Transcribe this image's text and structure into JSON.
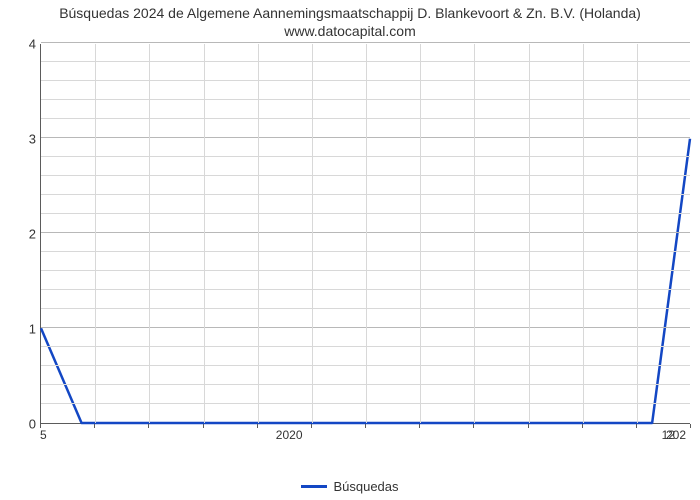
{
  "chart": {
    "type": "line",
    "title": "Búsquedas 2024 de Algemene Aannemingsmaatschappij D. Blankevoort & Zn. B.V. (Holanda) www.datocapital.com",
    "title_fontsize": 14,
    "title_color": "#333333",
    "background_color": "#ffffff",
    "plot_border_color": "#5b5b5b",
    "grid_color_minor": "#d8d8d8",
    "grid_color_major": "#b8b8b8",
    "ylim": [
      0,
      4
    ],
    "ytick_step_major": 1,
    "y_minor_per_major": 5,
    "yticks": [
      0,
      1,
      2,
      3,
      4
    ],
    "x_domain_units": 12,
    "x_minor_count": 12,
    "xticks": [
      {
        "pos": 0,
        "label": "5",
        "edge": "left"
      },
      {
        "pos": 4.6,
        "label": "2020",
        "edge": null
      },
      {
        "pos": 11.6,
        "label": "12",
        "edge": null
      },
      {
        "pos": 12,
        "label": "202",
        "edge": "right"
      }
    ],
    "series": [
      {
        "name": "Búsquedas",
        "color": "#1347c4",
        "line_width": 2.5,
        "points": [
          {
            "x": 0.0,
            "y": 1.0
          },
          {
            "x": 0.75,
            "y": 0.0
          },
          {
            "x": 11.3,
            "y": 0.0
          },
          {
            "x": 12.0,
            "y": 3.0
          }
        ]
      }
    ],
    "legend": {
      "position": "bottom-center",
      "fontsize": 13,
      "text_color": "#333333"
    },
    "tick_label_fontsize": 13,
    "tick_label_color": "#333333"
  }
}
